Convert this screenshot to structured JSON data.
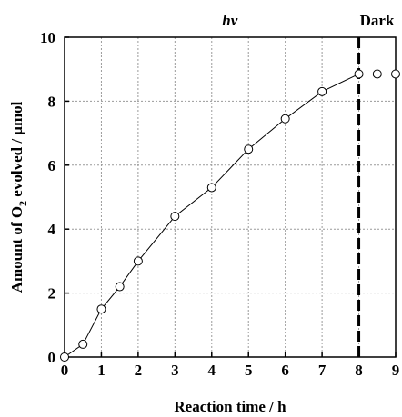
{
  "chart_data": {
    "type": "line",
    "xlabel": "Reaction time / h",
    "ylabel_parts": {
      "before": "Amount of O",
      "sub": "2",
      "after": " evolved / μmol"
    },
    "xlim": [
      0,
      9
    ],
    "ylim": [
      0,
      10
    ],
    "xticks": [
      0,
      1,
      2,
      3,
      4,
      5,
      6,
      7,
      8,
      9
    ],
    "yticks": [
      0,
      2,
      4,
      6,
      8,
      10
    ],
    "grid": true,
    "series": [
      {
        "x": [
          0,
          0.5,
          1,
          1.5,
          2,
          3,
          4,
          5,
          6,
          7,
          8,
          8.5,
          9
        ],
        "y": [
          0.0,
          0.4,
          1.5,
          2.2,
          3.0,
          4.4,
          5.3,
          6.5,
          7.45,
          8.3,
          8.85,
          8.85,
          8.85
        ]
      }
    ],
    "annotations": {
      "light_label": "hν",
      "dark_label": "Dark",
      "divider_x": 8
    }
  }
}
